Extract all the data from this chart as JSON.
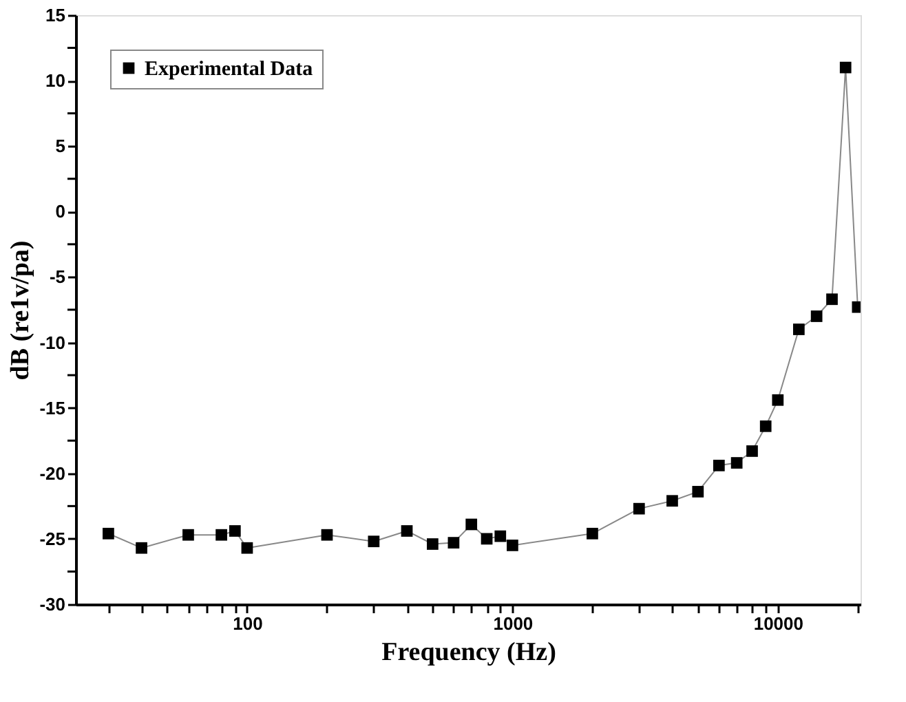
{
  "chart_data": {
    "type": "line",
    "xlabel": "Frequency (Hz)",
    "ylabel": "dB (re1v/pa)",
    "log": "x",
    "marker": "square",
    "line_style": "solid",
    "legend": "top left",
    "grid": false,
    "x": [
      30,
      40,
      60,
      80,
      90,
      100,
      200,
      300,
      400,
      500,
      600,
      700,
      800,
      900,
      1000,
      2000,
      3000,
      4000,
      5000,
      6000,
      7000,
      8000,
      9000,
      10000,
      12000,
      14000,
      16000,
      18000,
      20000
    ],
    "series": [
      {
        "name": "Experimental Data",
        "color": "#000000",
        "values": [
          -24.6,
          -25.7,
          -24.7,
          -24.7,
          -24.4,
          -25.7,
          -24.7,
          -25.2,
          -24.4,
          -25.4,
          -25.3,
          -23.9,
          -25.0,
          -24.8,
          -25.5,
          -24.6,
          -22.7,
          -22.1,
          -21.4,
          -19.4,
          -19.2,
          -18.3,
          -16.4,
          -14.4,
          -9.0,
          -8.0,
          -6.7,
          11.0,
          -7.3
        ]
      }
    ],
    "xlim": [
      22.6,
      20500
    ],
    "xticks": [
      {
        "value": 30,
        "label": null
      },
      {
        "value": 40,
        "label": null
      },
      {
        "value": 50,
        "label": null
      },
      {
        "value": 60,
        "label": null
      },
      {
        "value": 70,
        "label": null
      },
      {
        "value": 80,
        "label": null
      },
      {
        "value": 90,
        "label": null
      },
      100,
      {
        "value": 200,
        "label": null
      },
      {
        "value": 300,
        "label": null
      },
      {
        "value": 400,
        "label": null
      },
      {
        "value": 500,
        "label": null
      },
      {
        "value": 600,
        "label": null
      },
      {
        "value": 700,
        "label": null
      },
      {
        "value": 800,
        "label": null
      },
      {
        "value": 900,
        "label": null
      },
      1000,
      {
        "value": 2000,
        "label": null
      },
      {
        "value": 3000,
        "label": null
      },
      {
        "value": 4000,
        "label": null
      },
      {
        "value": 5000,
        "label": null
      },
      {
        "value": 6000,
        "label": null
      },
      {
        "value": 7000,
        "label": null
      },
      {
        "value": 8000,
        "label": null
      },
      {
        "value": 9000,
        "label": null
      },
      10000,
      {
        "value": 20000,
        "label": null
      }
    ],
    "ylim": [
      -30,
      15
    ],
    "yticks": [
      -30,
      {
        "value": -27.5,
        "label": null
      },
      -25,
      {
        "value": -22.5,
        "label": null
      },
      -20,
      {
        "value": -17.5,
        "label": null
      },
      -15,
      {
        "value": -12.5,
        "label": null
      },
      -10,
      {
        "value": -7.5,
        "label": null
      },
      -5,
      {
        "value": -2.5,
        "label": null
      },
      0,
      {
        "value": 2.5,
        "label": null
      },
      5,
      {
        "value": 7.5,
        "label": null
      },
      10,
      {
        "value": 12.5,
        "label": null
      },
      15
    ]
  }
}
